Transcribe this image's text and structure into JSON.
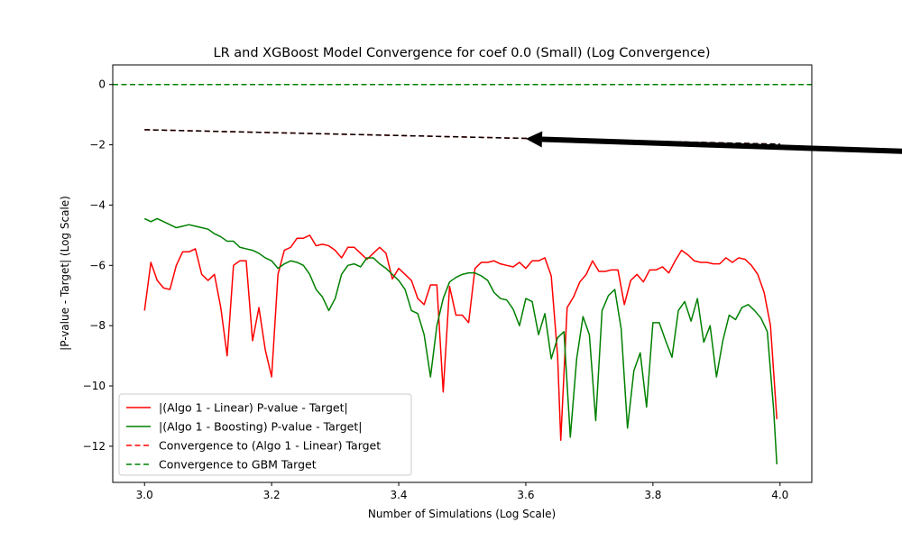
{
  "chart_data": {
    "type": "line",
    "title": "LR and XGBoost Model Convergence for coef 0.0 (Small) (Log Convergence)",
    "xlabel": "Number of Simulations (Log Scale)",
    "ylabel": "|P-value - Target| (Log Scale)",
    "xlim": [
      2.95,
      4.05
    ],
    "ylim": [
      -13.2,
      0.65
    ],
    "xticks": [
      "3.0",
      "3.2",
      "3.4",
      "3.6",
      "3.8",
      "4.0"
    ],
    "yticks": [
      "0",
      "−2",
      "−4",
      "−6",
      "−8",
      "−10",
      "−12"
    ],
    "grid": false,
    "legend_position": "lower-left",
    "series": [
      {
        "name": "|(Algo 1 - Linear) P-value - Target|",
        "color": "#ff0000",
        "style": "solid",
        "x": [
          3.0,
          3.01,
          3.02,
          3.03,
          3.04,
          3.05,
          3.06,
          3.07,
          3.08,
          3.09,
          3.1,
          3.11,
          3.12,
          3.13,
          3.14,
          3.15,
          3.16,
          3.17,
          3.18,
          3.19,
          3.2,
          3.21,
          3.22,
          3.23,
          3.24,
          3.25,
          3.26,
          3.27,
          3.28,
          3.29,
          3.3,
          3.31,
          3.32,
          3.33,
          3.34,
          3.35,
          3.36,
          3.37,
          3.38,
          3.39,
          3.4,
          3.41,
          3.42,
          3.43,
          3.44,
          3.45,
          3.46,
          3.47,
          3.48,
          3.49,
          3.5,
          3.51,
          3.52,
          3.53,
          3.54,
          3.55,
          3.56,
          3.57,
          3.58,
          3.59,
          3.6,
          3.61,
          3.62,
          3.63,
          3.64,
          3.65,
          3.655,
          3.665,
          3.675,
          3.685,
          3.695,
          3.705,
          3.715,
          3.725,
          3.735,
          3.745,
          3.755,
          3.765,
          3.775,
          3.785,
          3.795,
          3.805,
          3.815,
          3.825,
          3.835,
          3.845,
          3.855,
          3.865,
          3.875,
          3.885,
          3.895,
          3.905,
          3.915,
          3.925,
          3.935,
          3.945,
          3.955,
          3.965,
          3.975,
          3.985,
          3.995
        ],
        "y": [
          -7.5,
          -5.9,
          -6.5,
          -6.75,
          -6.8,
          -6.0,
          -5.55,
          -5.55,
          -5.45,
          -6.3,
          -6.5,
          -6.3,
          -7.4,
          -9.0,
          -6.0,
          -5.85,
          -5.85,
          -8.5,
          -7.4,
          -8.8,
          -9.7,
          -6.3,
          -5.5,
          -5.4,
          -5.1,
          -5.1,
          -5.0,
          -5.35,
          -5.3,
          -5.35,
          -5.5,
          -5.75,
          -5.4,
          -5.4,
          -5.6,
          -5.8,
          -5.6,
          -5.4,
          -5.6,
          -6.45,
          -6.1,
          -6.3,
          -6.5,
          -7.1,
          -7.3,
          -6.65,
          -6.65,
          -10.2,
          -6.7,
          -7.65,
          -7.65,
          -7.9,
          -6.1,
          -5.9,
          -5.9,
          -5.85,
          -5.95,
          -6.0,
          -6.05,
          -5.9,
          -6.1,
          -5.85,
          -5.85,
          -5.75,
          -6.35,
          -9.0,
          -11.8,
          -7.4,
          -7.05,
          -6.55,
          -6.3,
          -5.85,
          -6.2,
          -6.2,
          -6.15,
          -6.15,
          -7.3,
          -6.5,
          -6.3,
          -6.55,
          -6.15,
          -6.15,
          -6.05,
          -6.25,
          -5.85,
          -5.5,
          -5.65,
          -5.85,
          -5.9,
          -5.9,
          -5.95,
          -5.95,
          -5.75,
          -5.9,
          -5.75,
          -5.8,
          -6.0,
          -6.3,
          -6.9,
          -8.0,
          -11.1
        ]
      },
      {
        "name": "|(Algo 1 - Boosting) P-value - Target|",
        "color": "#008000",
        "style": "solid",
        "x": [
          3.0,
          3.01,
          3.02,
          3.03,
          3.04,
          3.05,
          3.06,
          3.07,
          3.08,
          3.09,
          3.1,
          3.11,
          3.12,
          3.13,
          3.14,
          3.15,
          3.16,
          3.17,
          3.18,
          3.19,
          3.2,
          3.21,
          3.22,
          3.23,
          3.24,
          3.25,
          3.26,
          3.27,
          3.28,
          3.29,
          3.3,
          3.31,
          3.32,
          3.33,
          3.34,
          3.35,
          3.36,
          3.37,
          3.38,
          3.39,
          3.4,
          3.41,
          3.42,
          3.43,
          3.44,
          3.45,
          3.46,
          3.47,
          3.48,
          3.49,
          3.5,
          3.51,
          3.52,
          3.53,
          3.54,
          3.55,
          3.56,
          3.57,
          3.58,
          3.59,
          3.6,
          3.61,
          3.62,
          3.63,
          3.64,
          3.65,
          3.66,
          3.67,
          3.68,
          3.69,
          3.7,
          3.71,
          3.72,
          3.73,
          3.74,
          3.75,
          3.76,
          3.77,
          3.78,
          3.79,
          3.8,
          3.81,
          3.82,
          3.83,
          3.84,
          3.85,
          3.86,
          3.87,
          3.88,
          3.89,
          3.9,
          3.91,
          3.92,
          3.93,
          3.94,
          3.95,
          3.96,
          3.97,
          3.98,
          3.99,
          3.995
        ],
        "y": [
          -4.45,
          -4.55,
          -4.45,
          -4.55,
          -4.65,
          -4.75,
          -4.7,
          -4.65,
          -4.7,
          -4.75,
          -4.8,
          -4.95,
          -5.05,
          -5.2,
          -5.2,
          -5.4,
          -5.45,
          -5.5,
          -5.6,
          -5.75,
          -5.85,
          -6.1,
          -5.95,
          -5.85,
          -5.9,
          -6.0,
          -6.3,
          -6.8,
          -7.05,
          -7.5,
          -7.1,
          -6.3,
          -6.0,
          -5.95,
          -6.05,
          -5.75,
          -5.75,
          -5.95,
          -6.1,
          -6.3,
          -6.5,
          -6.8,
          -7.5,
          -7.6,
          -8.3,
          -9.7,
          -8.0,
          -7.1,
          -6.55,
          -6.4,
          -6.3,
          -6.25,
          -6.25,
          -6.35,
          -6.5,
          -6.9,
          -7.1,
          -7.15,
          -7.45,
          -8.0,
          -7.1,
          -7.2,
          -8.3,
          -7.6,
          -9.1,
          -8.4,
          -8.2,
          -11.7,
          -9.1,
          -7.7,
          -8.3,
          -11.15,
          -7.5,
          -7.0,
          -6.8,
          -8.1,
          -11.4,
          -9.5,
          -8.9,
          -10.7,
          -7.9,
          -7.9,
          -8.5,
          -9.05,
          -7.5,
          -7.2,
          -7.85,
          -7.1,
          -8.55,
          -8.0,
          -9.7,
          -8.5,
          -7.65,
          -7.8,
          -7.4,
          -7.3,
          -7.5,
          -7.75,
          -8.2,
          -10.8,
          -12.6
        ]
      },
      {
        "name": "Convergence to (Algo 1 - Linear) Target",
        "color": "#ff0000",
        "style": "dashed",
        "x": [
          3.0,
          4.0
        ],
        "y": [
          -1.5,
          -1.98
        ]
      },
      {
        "name": "Convergence to GBM Target",
        "color": "#008000",
        "style": "dashed",
        "x": [
          2.95,
          4.05
        ],
        "y": [
          0,
          0
        ]
      }
    ],
    "extra_lines": [
      {
        "color": "#000000",
        "style": "dashed",
        "x": [
          3.0,
          4.0
        ],
        "y": [
          -1.5,
          -1.98
        ]
      }
    ],
    "annotation": {
      "type": "arrow",
      "color": "#000000",
      "from": [
        4.2,
        -2.22
      ],
      "to": [
        3.6,
        -1.8
      ]
    }
  }
}
